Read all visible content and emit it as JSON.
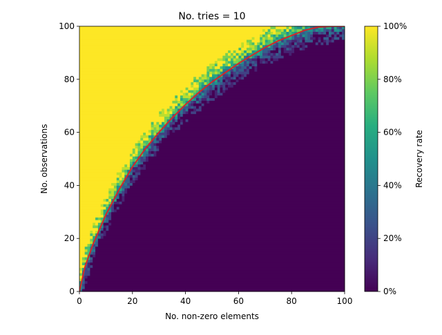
{
  "chart_data": {
    "type": "heatmap",
    "title": "No. tries = 10",
    "xlabel": "No. non-zero elements",
    "ylabel": "No. observations",
    "xlim": [
      0,
      100
    ],
    "ylim": [
      0,
      100
    ],
    "x_ticks": [
      "0",
      "20",
      "40",
      "60",
      "80",
      "100"
    ],
    "y_ticks": [
      "0",
      "20",
      "40",
      "60",
      "80",
      "100"
    ],
    "colorbar": {
      "label": "Recovery rate",
      "colormap": "viridis",
      "range": [
        0,
        1
      ],
      "ticks": [
        "0%",
        "20%",
        "40%",
        "60%",
        "80%",
        "100%"
      ]
    },
    "cell_values": "recovery rate ≈ 1 above the phase-transition curve, ≈ 0 below, with a noisy transition band ~±6 wide",
    "phase_transition_curve": {
      "color": "#d62728",
      "x": [
        0,
        2,
        5,
        10,
        15,
        20,
        25,
        30,
        35,
        40,
        45,
        50,
        55,
        60,
        65,
        70,
        75,
        80,
        85,
        90,
        95,
        100
      ],
      "y": [
        0,
        9,
        17.5,
        29,
        38.5,
        47,
        54,
        60,
        65.5,
        70.5,
        75,
        79,
        82.5,
        86,
        89,
        92,
        94.5,
        96.5,
        98.5,
        99.7,
        100,
        100
      ]
    }
  }
}
